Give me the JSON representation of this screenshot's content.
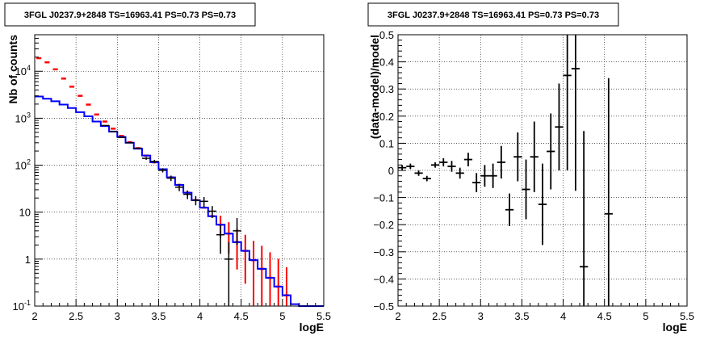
{
  "colors": {
    "data": "#000000",
    "model": "#0000ff",
    "sim": "#ff0000",
    "grid": "#000000"
  },
  "chart_data": [
    {
      "type": "line",
      "title": "3FGL J0237.9+2848 TS=16963.41 PS=0.73 PS=0.73",
      "xlabel": "logE",
      "ylabel": "Nb of counts",
      "xlim": [
        2,
        5.5
      ],
      "ylim": [
        0.1,
        60000
      ],
      "yscale": "log",
      "grid": true,
      "x_ticks": [
        "2",
        "2.5",
        "3",
        "3.5",
        "4",
        "4.5",
        "5",
        "5.5"
      ],
      "y_ticks": [
        "10^-1",
        "1",
        "10",
        "10^2",
        "10^3",
        "10^4"
      ],
      "bin_width": 0.1,
      "series": [
        {
          "style": "step",
          "x": [
            2.05,
            2.15,
            2.25,
            2.35,
            2.45,
            2.55,
            2.65,
            2.75,
            2.85,
            2.95,
            3.05,
            3.15,
            3.25,
            3.35,
            3.45,
            3.55,
            3.65,
            3.75,
            3.85,
            3.95,
            4.05,
            4.15,
            4.25,
            4.35,
            4.45,
            4.55,
            4.65,
            4.75,
            4.85,
            4.95,
            5.05,
            5.15,
            5.25,
            5.35,
            5.45
          ],
          "values": [
            2900,
            2600,
            2300,
            1950,
            1650,
            1350,
            1100,
            850,
            680,
            520,
            400,
            300,
            225,
            160,
            115,
            82,
            55,
            38,
            26,
            18,
            12.5,
            8.2,
            5.4,
            3.5,
            2.3,
            1.5,
            0.95,
            0.62,
            0.4,
            0.26,
            0.17,
            0.11,
            0.1,
            0.1,
            0.1
          ]
        },
        {
          "style": "dash",
          "x": [
            2.05,
            2.15,
            2.25,
            2.35,
            2.45,
            2.55,
            2.65,
            2.75,
            2.85,
            2.95,
            3.05,
            3.15,
            3.25,
            3.35,
            3.45,
            3.55,
            3.65,
            3.75,
            3.85,
            3.95,
            4.05,
            4.15,
            4.25,
            4.35,
            4.45,
            4.55,
            4.65,
            4.75,
            4.85,
            4.95,
            5.05
          ],
          "values": [
            19000,
            15500,
            11000,
            7000,
            4700,
            3000,
            1950,
            1200,
            850,
            600,
            420,
            310,
            230,
            160,
            115,
            80,
            55,
            38,
            26,
            18,
            12.5,
            8.2,
            5.4,
            3.5,
            2.3,
            1.5,
            0.95,
            0.62,
            0.4,
            0.26,
            0.17
          ],
          "errors_low": [
            0,
            0,
            0,
            0,
            0,
            0,
            0,
            0,
            0,
            0,
            0,
            0,
            0,
            0,
            0,
            0,
            0,
            0,
            0,
            0,
            0,
            0,
            2.5,
            2.2,
            1.7,
            1.2,
            0.85,
            0.52,
            0.3,
            0.16,
            0.07
          ],
          "errors_high": [
            0,
            0,
            0,
            0,
            0,
            0,
            0,
            0,
            0,
            0,
            0,
            0,
            0,
            0,
            0,
            0,
            0,
            0,
            0,
            0,
            0,
            0,
            3.0,
            2.6,
            2.2,
            1.8,
            1.5,
            1.3,
            1.0,
            0.75,
            0.5
          ]
        },
        {
          "style": "cross",
          "x": [
            2.85,
            2.95,
            3.05,
            3.15,
            3.25,
            3.35,
            3.45,
            3.55,
            3.65,
            3.75,
            3.85,
            3.95,
            4.05,
            4.15,
            4.25,
            4.35,
            4.45
          ],
          "values": [
            700,
            520,
            390,
            300,
            230,
            140,
            120,
            78,
            53,
            34,
            24,
            18,
            17,
            10.5,
            3.3,
            1,
            4
          ],
          "errors_low": [
            0,
            0,
            0,
            0,
            0,
            10,
            10,
            8,
            7,
            6,
            5,
            4,
            4,
            3,
            2,
            0.9,
            2
          ],
          "errors_high": [
            0,
            0,
            0,
            0,
            0,
            10,
            10,
            8,
            7,
            6,
            5,
            4,
            4,
            3,
            2,
            1.3,
            3.5
          ]
        }
      ]
    },
    {
      "type": "scatter",
      "title": "3FGL J0237.9+2848 TS=16963.41 PS=0.73 PS=0.73",
      "xlabel": "logE",
      "ylabel": "(data-model)/model",
      "xlim": [
        2,
        5.5
      ],
      "ylim": [
        -0.5,
        0.5
      ],
      "grid": true,
      "x_ticks": [
        "2",
        "2.5",
        "3",
        "3.5",
        "4",
        "4.5",
        "5",
        "5.5"
      ],
      "y_ticks": [
        "−0.5",
        "−0.4",
        "−0.3",
        "−0.2",
        "−0.1",
        "0",
        "0.1",
        "0.2",
        "0.3",
        "0.4",
        "0.5"
      ],
      "x_half_width": 0.05,
      "series": [
        {
          "x": [
            2.05,
            2.15,
            2.25,
            2.35,
            2.45,
            2.55,
            2.65,
            2.75,
            2.85,
            2.95,
            3.05,
            3.15,
            3.25,
            3.35,
            3.45,
            3.55,
            3.65,
            3.75,
            3.85,
            3.95,
            4.05,
            4.15,
            4.25,
            4.55
          ],
          "values": [
            0.01,
            0.015,
            -0.01,
            -0.03,
            0.02,
            0.03,
            0.015,
            -0.01,
            0.04,
            -0.045,
            -0.02,
            -0.02,
            0.03,
            -0.145,
            0.05,
            -0.07,
            0.05,
            -0.125,
            0.07,
            0.16,
            0.35,
            0.375,
            -0.355,
            -0.16
          ],
          "errors_low": [
            0.01,
            0.01,
            0.01,
            0.01,
            0.01,
            0.015,
            0.02,
            0.02,
            0.025,
            0.035,
            0.04,
            0.045,
            0.06,
            0.06,
            0.09,
            0.11,
            0.13,
            0.15,
            0.14,
            0.16,
            0.35,
            0.45,
            0.5,
            0.5
          ],
          "errors_high": [
            0.01,
            0.01,
            0.01,
            0.01,
            0.01,
            0.015,
            0.02,
            0.02,
            0.025,
            0.035,
            0.04,
            0.045,
            0.06,
            0.06,
            0.09,
            0.11,
            0.13,
            0.15,
            0.14,
            0.16,
            0.35,
            0.45,
            0.5,
            0.5
          ]
        }
      ]
    }
  ]
}
